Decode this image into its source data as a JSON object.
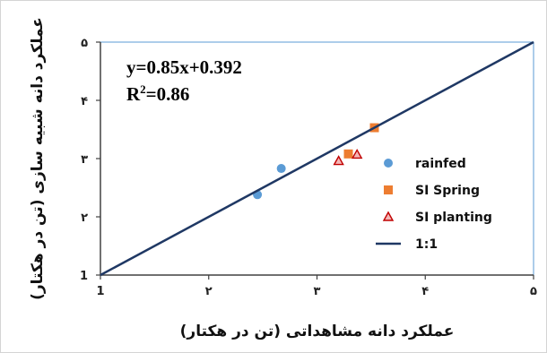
{
  "chart_data": {
    "type": "scatter",
    "xlabel": "عملکرد دانه مشاهداتی (تن در هکتار)",
    "ylabel": "عملکرد دانه شبیه سازی (تن در هکتار)",
    "xlim": [
      1,
      5
    ],
    "ylim": [
      1,
      5
    ],
    "x_ticks": [
      "1",
      "2",
      "3",
      "4",
      "5"
    ],
    "y_ticks": [
      "1",
      "2",
      "3",
      "4",
      "5"
    ],
    "x_tick_labels": [
      "1",
      "۲",
      "۳",
      "۴",
      "۵"
    ],
    "y_tick_labels": [
      "1",
      "۲",
      "۳",
      "۴",
      "۵"
    ],
    "grid": false,
    "legend_position": "right",
    "annotation": {
      "equation": "y=0.85x+0.392",
      "r2_prefix": "R",
      "r2_sup": "2",
      "r2_value": "=0.86"
    },
    "series": [
      {
        "name": "rainfed",
        "marker": "circle",
        "color": "#5b9bd5",
        "points": [
          [
            2.45,
            2.38
          ],
          [
            2.67,
            2.83
          ]
        ]
      },
      {
        "name": "SI Spring",
        "marker": "square",
        "color": "#ed7d31",
        "points": [
          [
            3.29,
            3.08
          ],
          [
            3.53,
            3.53
          ]
        ]
      },
      {
        "name": "SI planting",
        "marker": "triangle",
        "color": "#c00000",
        "points": [
          [
            3.2,
            2.96
          ],
          [
            3.37,
            3.07
          ]
        ]
      },
      {
        "name": "1:1",
        "marker": "line",
        "color": "#1f3864",
        "points": [
          [
            1,
            1
          ],
          [
            5,
            5
          ]
        ]
      }
    ]
  }
}
